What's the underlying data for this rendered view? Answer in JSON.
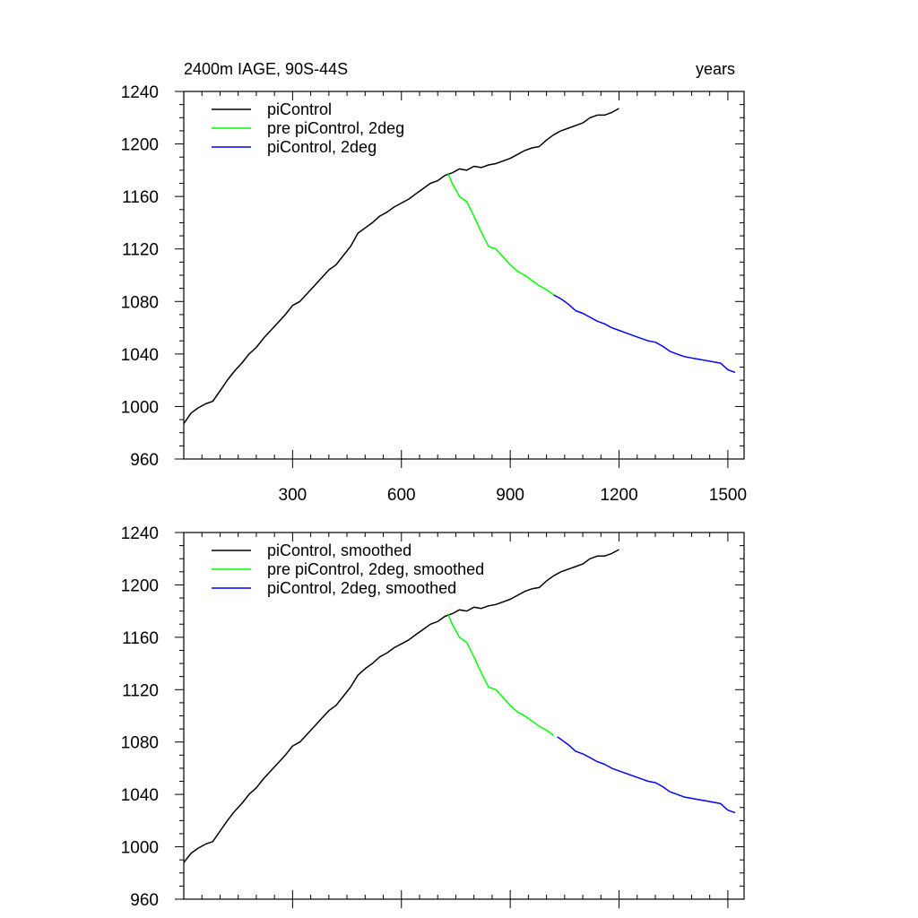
{
  "figure": {
    "title_left": "2400m IAGE, 90S-44S",
    "title_right": "years"
  },
  "colors": {
    "picontrol": "#000000",
    "pre_picontrol_2deg": "#00ff00",
    "picontrol_2deg": "#0000ff"
  },
  "chart_data": [
    {
      "type": "line",
      "panel": "top",
      "title": "2400m IAGE, 90S-44S",
      "xlabel": "years",
      "ylabel": "",
      "xlim": [
        0,
        1520
      ],
      "ylim": [
        960,
        1240
      ],
      "x_major_ticks": [
        300,
        600,
        900,
        1200,
        1500
      ],
      "x_tick_labels": [
        "300",
        "600",
        "900",
        "1200",
        "1500"
      ],
      "y_major_ticks": [
        960,
        1000,
        1040,
        1080,
        1120,
        1160,
        1200,
        1240
      ],
      "y_tick_labels": [
        "960",
        "1000",
        "1040",
        "1080",
        "1120",
        "1160",
        "1200",
        "1240"
      ],
      "legend_position": "top-left",
      "grid": false,
      "series": [
        {
          "name": "piControl",
          "color": "#000000",
          "x": [
            0,
            20,
            40,
            60,
            80,
            100,
            120,
            140,
            160,
            180,
            200,
            220,
            240,
            260,
            280,
            300,
            320,
            340,
            360,
            380,
            400,
            420,
            440,
            460,
            480,
            500,
            520,
            540,
            560,
            580,
            600,
            620,
            640,
            660,
            680,
            700,
            720,
            740,
            760,
            780,
            800,
            820,
            840,
            860,
            880,
            900,
            920,
            940,
            960,
            980,
            1000,
            1020,
            1040,
            1060,
            1080,
            1100,
            1120,
            1140,
            1160,
            1180,
            1200
          ],
          "y": [
            987,
            995,
            999,
            1002,
            1004,
            1012,
            1020,
            1027,
            1033,
            1040,
            1045,
            1052,
            1058,
            1064,
            1070,
            1077,
            1080,
            1086,
            1092,
            1098,
            1104,
            1108,
            1115,
            1122,
            1132,
            1136,
            1140,
            1145,
            1148,
            1152,
            1155,
            1158,
            1162,
            1166,
            1170,
            1172,
            1176,
            1178,
            1181,
            1180,
            1183,
            1182,
            1184,
            1185,
            1187,
            1189,
            1192,
            1195,
            1197,
            1198,
            1203,
            1207,
            1210,
            1212,
            1214,
            1216,
            1220,
            1222,
            1222,
            1224,
            1227
          ]
        },
        {
          "name": "pre piControl, 2deg",
          "color": "#00ff00",
          "x": [
            728,
            740,
            760,
            780,
            800,
            820,
            840,
            860,
            880,
            900,
            920,
            940,
            960,
            980,
            1000,
            1020
          ],
          "y": [
            1178,
            1170,
            1160,
            1156,
            1145,
            1133,
            1122,
            1120,
            1114,
            1108,
            1103,
            1100,
            1096,
            1092,
            1089,
            1085
          ]
        },
        {
          "name": "piControl, 2deg",
          "color": "#0000ff",
          "x": [
            1020,
            1040,
            1060,
            1080,
            1100,
            1120,
            1140,
            1160,
            1180,
            1200,
            1220,
            1240,
            1260,
            1280,
            1300,
            1320,
            1340,
            1360,
            1380,
            1400,
            1420,
            1440,
            1460,
            1480,
            1500,
            1520
          ],
          "y": [
            1085,
            1082,
            1078,
            1073,
            1071,
            1068,
            1065,
            1063,
            1060,
            1058,
            1056,
            1054,
            1052,
            1050,
            1049,
            1046,
            1042,
            1040,
            1038,
            1037,
            1036,
            1035,
            1034,
            1033,
            1028,
            1026
          ]
        }
      ]
    },
    {
      "type": "line",
      "panel": "bottom",
      "title": "",
      "xlabel": "",
      "ylabel": "",
      "xlim": [
        0,
        1520
      ],
      "ylim": [
        960,
        1240
      ],
      "x_major_ticks": [
        300,
        600,
        900,
        1200,
        1500
      ],
      "x_tick_labels": [],
      "y_major_ticks": [
        960,
        1000,
        1040,
        1080,
        1120,
        1160,
        1200,
        1240
      ],
      "y_tick_labels": [
        "960",
        "1000",
        "1040",
        "1080",
        "1120",
        "1160",
        "1200",
        "1240"
      ],
      "legend_position": "top-left",
      "grid": false,
      "series": [
        {
          "name": "piControl, smoothed",
          "color": "#000000",
          "x": [
            0,
            20,
            40,
            60,
            80,
            100,
            120,
            140,
            160,
            180,
            200,
            220,
            240,
            260,
            280,
            300,
            320,
            340,
            360,
            380,
            400,
            420,
            440,
            460,
            480,
            500,
            520,
            540,
            560,
            580,
            600,
            620,
            640,
            660,
            680,
            700,
            720,
            740,
            760,
            780,
            800,
            820,
            840,
            860,
            880,
            900,
            920,
            940,
            960,
            980,
            1000,
            1020,
            1040,
            1060,
            1080,
            1100,
            1120,
            1140,
            1160,
            1180,
            1200
          ],
          "y": [
            988,
            995,
            999,
            1002,
            1004,
            1012,
            1020,
            1027,
            1033,
            1040,
            1045,
            1052,
            1058,
            1064,
            1070,
            1077,
            1080,
            1086,
            1092,
            1098,
            1104,
            1108,
            1115,
            1122,
            1131,
            1136,
            1140,
            1145,
            1148,
            1152,
            1155,
            1158,
            1162,
            1166,
            1170,
            1172,
            1176,
            1178,
            1181,
            1180,
            1183,
            1182,
            1184,
            1185,
            1187,
            1189,
            1192,
            1195,
            1197,
            1198,
            1203,
            1207,
            1210,
            1212,
            1214,
            1216,
            1220,
            1222,
            1222,
            1224,
            1227
          ]
        },
        {
          "name": "pre piControl, 2deg, smoothed",
          "color": "#00ff00",
          "x": [
            728,
            740,
            760,
            780,
            800,
            820,
            840,
            860,
            880,
            900,
            920,
            940,
            960,
            980,
            1000,
            1020
          ],
          "y": [
            1178,
            1170,
            1160,
            1156,
            1145,
            1133,
            1122,
            1120,
            1114,
            1108,
            1103,
            1100,
            1096,
            1092,
            1089,
            1085
          ]
        },
        {
          "name": "piControl, 2deg, smoothed",
          "color": "#0000ff",
          "x": [
            1030,
            1040,
            1060,
            1080,
            1100,
            1120,
            1140,
            1160,
            1180,
            1200,
            1220,
            1240,
            1260,
            1280,
            1300,
            1320,
            1340,
            1360,
            1380,
            1400,
            1420,
            1440,
            1460,
            1480,
            1500,
            1520
          ],
          "y": [
            1084,
            1082,
            1078,
            1073,
            1071,
            1068,
            1065,
            1063,
            1060,
            1058,
            1056,
            1054,
            1052,
            1050,
            1049,
            1046,
            1042,
            1040,
            1038,
            1037,
            1036,
            1035,
            1034,
            1033,
            1028,
            1026
          ]
        }
      ]
    }
  ]
}
